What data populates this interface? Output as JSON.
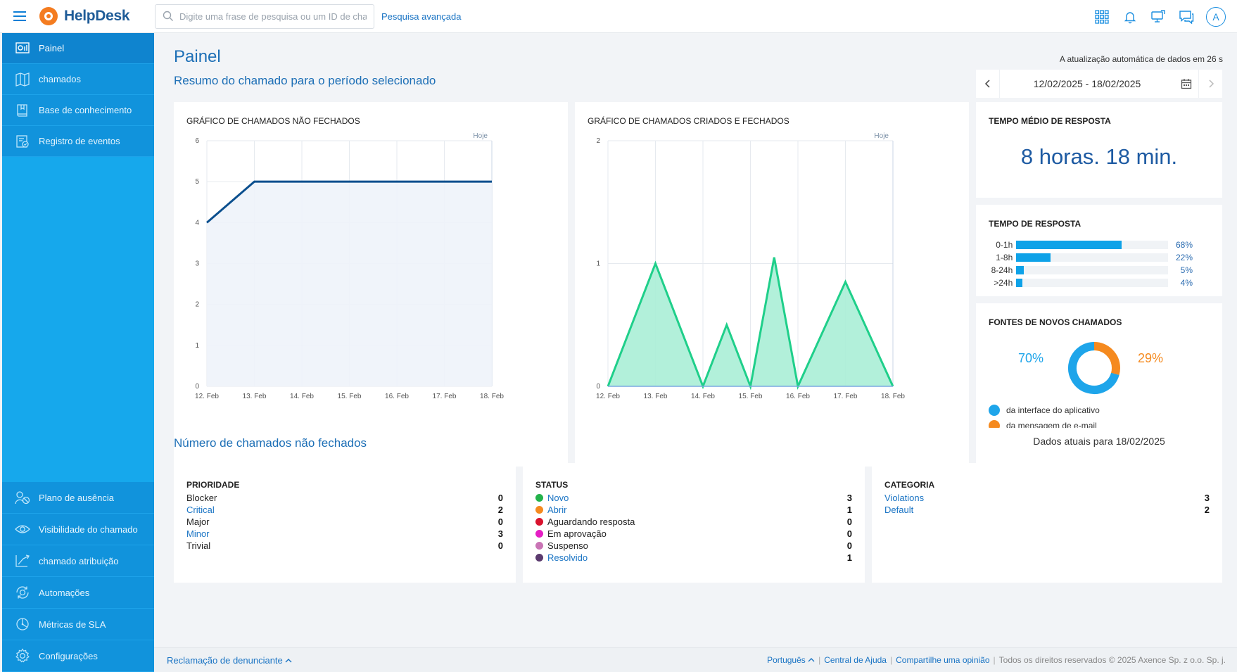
{
  "app": {
    "logo_text": "HelpDesk"
  },
  "search": {
    "placeholder": "Digite uma frase de pesquisa ou um ID de chamado",
    "advanced_label": "Pesquisa avançada"
  },
  "user": {
    "avatar_letter": "A"
  },
  "sidebar": {
    "items": [
      {
        "label": "Painel",
        "icon": "dashboard-icon",
        "active": true
      },
      {
        "label": "chamados",
        "icon": "tickets-icon"
      },
      {
        "label": "Base de conhecimento",
        "icon": "book-icon"
      },
      {
        "label": "Registro de eventos",
        "icon": "event-log-icon"
      }
    ],
    "bottom_items": [
      {
        "label": "Plano de ausência",
        "icon": "absence-icon"
      },
      {
        "label": "Visibilidade do chamado",
        "icon": "visibility-icon"
      },
      {
        "label": "chamado atribuição",
        "icon": "assignment-icon"
      },
      {
        "label": "Automações",
        "icon": "automation-icon"
      },
      {
        "label": "Métricas de SLA",
        "icon": "sla-icon"
      },
      {
        "label": "Configurações",
        "icon": "gear-icon"
      }
    ]
  },
  "page": {
    "title": "Painel",
    "subtitle": "Resumo do chamado para o período selecionado",
    "refresh_note": "A atualização automática de dados em 26 s",
    "date_range": "12/02/2025 - 18/02/2025"
  },
  "chart_data": [
    {
      "type": "area",
      "title": "GRÁFICO DE CHAMADOS NÃO FECHADOS",
      "categories": [
        "12. Feb",
        "13. Feb",
        "14. Feb",
        "15. Feb",
        "16. Feb",
        "17. Feb",
        "18. Feb"
      ],
      "x": [
        0,
        1,
        2,
        3,
        4,
        5,
        6
      ],
      "series": [
        {
          "values": [
            4,
            5,
            5,
            5,
            5,
            5,
            5
          ],
          "color": "#0b4f8e",
          "fill": "#eef3f9"
        }
      ],
      "ylim": [
        0,
        6
      ],
      "yticks": [
        0,
        1,
        2,
        3,
        4,
        5,
        6
      ],
      "annotation": "Hoje",
      "grid": true
    },
    {
      "type": "area",
      "title": "GRÁFICO DE CHAMADOS CRIADOS E FECHADOS",
      "categories": [
        "12. Feb",
        "13. Feb",
        "14. Feb",
        "15. Feb",
        "16. Feb",
        "17. Feb",
        "18. Feb"
      ],
      "series": [
        {
          "x": [
            0,
            1,
            2,
            2.5,
            3,
            3.5,
            4,
            5,
            6
          ],
          "values": [
            0,
            1,
            0,
            0.5,
            0,
            1.05,
            0,
            0.85,
            0
          ],
          "color": "#1fcf8a",
          "fill": "#aaeed6"
        },
        {
          "x": [
            0,
            6
          ],
          "values": [
            0,
            0
          ],
          "color": "#7aa9e0"
        }
      ],
      "ylim": [
        0,
        2
      ],
      "yticks": [
        0,
        1,
        2
      ],
      "annotation": "Hoje",
      "grid": true
    }
  ],
  "avg_response": {
    "title": "TEMPO MÉDIO DE RESPOSTA",
    "value": "8 horas. 18 min."
  },
  "response_time": {
    "title": "TEMPO DE RESPOSTA",
    "rows": [
      {
        "label": "0-1h",
        "percent": 68,
        "text": "68%"
      },
      {
        "label": "1-8h",
        "percent": 22,
        "text": "22%"
      },
      {
        "label": "8-24h",
        "percent": 5,
        "text": "5%"
      },
      {
        "label": ">24h",
        "percent": 4,
        "text": "4%"
      }
    ]
  },
  "sources": {
    "title": "FONTES DE NOVOS CHAMADOS",
    "app_pct": "70%",
    "email_pct": "29%",
    "app_value": 70,
    "email_value": 29,
    "app_label": "da interface do aplicativo",
    "email_label": "da mensagem de e-mail",
    "app_color": "#1ea5ea",
    "email_color": "#f58a1f"
  },
  "unclosed": {
    "title": "Número de chamados não fechados",
    "current_data": "Dados atuais para 18/02/2025",
    "priority": {
      "title": "PRIORIDADE",
      "rows": [
        {
          "name": "Blocker",
          "count": "0",
          "link": false
        },
        {
          "name": "Critical",
          "count": "2",
          "link": true
        },
        {
          "name": "Major",
          "count": "0",
          "link": false
        },
        {
          "name": "Minor",
          "count": "3",
          "link": true
        },
        {
          "name": "Trivial",
          "count": "0",
          "link": false
        }
      ]
    },
    "status": {
      "title": "STATUS",
      "rows": [
        {
          "name": "Novo",
          "count": "3",
          "link": true,
          "color": "#23b24b"
        },
        {
          "name": "Abrir",
          "count": "1",
          "link": true,
          "color": "#f58a1f"
        },
        {
          "name": "Aguardando resposta",
          "count": "0",
          "link": false,
          "color": "#d9132e"
        },
        {
          "name": "Em aprovação",
          "count": "0",
          "link": false,
          "color": "#e51fc4"
        },
        {
          "name": "Suspenso",
          "count": "0",
          "link": false,
          "color": "#c974b5"
        },
        {
          "name": "Resolvido",
          "count": "1",
          "link": true,
          "color": "#5b3a6e"
        }
      ]
    },
    "category": {
      "title": "CATEGORIA",
      "rows": [
        {
          "name": "Violations",
          "count": "3",
          "link": true
        },
        {
          "name": "Default",
          "count": "2",
          "link": true
        }
      ]
    }
  },
  "footer": {
    "whistle": "Reclamação de denunciante",
    "language": "Português",
    "help": "Central de Ajuda",
    "feedback": "Compartilhe uma opinião",
    "rights": "Todos os direitos reservados © 2025 Axence Sp. z o.o. Sp. j."
  }
}
